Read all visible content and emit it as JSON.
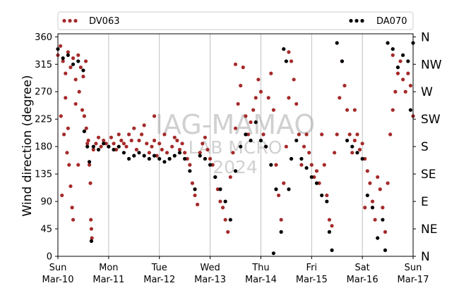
{
  "chart_data": {
    "type": "scatter",
    "xlabel": "",
    "ylabel": "Wind direction (degree)",
    "ylim": [
      0,
      365
    ],
    "xlim": [
      "2024-03-10",
      "2024-03-17"
    ],
    "yticks": [
      0,
      45,
      90,
      135,
      180,
      225,
      270,
      315,
      360
    ],
    "compass_ticks": [
      {
        "value": 0,
        "label": "N"
      },
      {
        "value": 45,
        "label": "NE"
      },
      {
        "value": 90,
        "label": "E"
      },
      {
        "value": 135,
        "label": "SE"
      },
      {
        "value": 180,
        "label": "S"
      },
      {
        "value": 225,
        "label": "SW"
      },
      {
        "value": 270,
        "label": "W"
      },
      {
        "value": 315,
        "label": "NW"
      },
      {
        "value": 360,
        "label": "N"
      }
    ],
    "xticks": [
      {
        "day": "Sun",
        "date": "Mar-10"
      },
      {
        "day": "Mon",
        "date": "Mar-11"
      },
      {
        "day": "Tue",
        "date": "Mar-12"
      },
      {
        "day": "Wed",
        "date": "Mar-13"
      },
      {
        "day": "Thu",
        "date": "Mar-14"
      },
      {
        "day": "Fri",
        "date": "Mar-15"
      },
      {
        "day": "Sat",
        "date": "Mar-16"
      },
      {
        "day": "Sun",
        "date": "Mar-17"
      }
    ],
    "grid": "vertical",
    "legend_position": "top",
    "watermark": [
      "IAG-MAMAO",
      "LAB MCRO",
      "2024"
    ],
    "series": [
      {
        "name": "DV063",
        "color": "#a52a2a",
        "points": [
          [
            0.0,
            330
          ],
          [
            0.05,
            345
          ],
          [
            0.1,
            320
          ],
          [
            0.15,
            300
          ],
          [
            0.2,
            335
          ],
          [
            0.25,
            310
          ],
          [
            0.3,
            325
          ],
          [
            0.35,
            290
          ],
          [
            0.4,
            330
          ],
          [
            0.45,
            310
          ],
          [
            0.5,
            295
          ],
          [
            0.55,
            320
          ],
          [
            0.06,
            230
          ],
          [
            0.12,
            200
          ],
          [
            0.18,
            170
          ],
          [
            0.22,
            150
          ],
          [
            0.25,
            115
          ],
          [
            0.28,
            80
          ],
          [
            0.3,
            60
          ],
          [
            0.08,
            100
          ],
          [
            0.15,
            260
          ],
          [
            0.35,
            250
          ],
          [
            0.42,
            270
          ],
          [
            0.48,
            240
          ],
          [
            0.52,
            230
          ],
          [
            0.56,
            210
          ],
          [
            0.58,
            185
          ],
          [
            0.6,
            190
          ],
          [
            0.62,
            150
          ],
          [
            0.64,
            120
          ],
          [
            0.65,
            60
          ],
          [
            0.66,
            45
          ],
          [
            0.67,
            30
          ],
          [
            0.7,
            175
          ],
          [
            0.75,
            185
          ],
          [
            0.8,
            195
          ],
          [
            0.85,
            180
          ],
          [
            0.9,
            190
          ],
          [
            0.95,
            185
          ],
          [
            1.0,
            180
          ],
          [
            1.05,
            195
          ],
          [
            1.1,
            185
          ],
          [
            1.15,
            175
          ],
          [
            1.2,
            200
          ],
          [
            1.25,
            190
          ],
          [
            1.3,
            185
          ],
          [
            1.35,
            180
          ],
          [
            1.4,
            200
          ],
          [
            1.45,
            190
          ],
          [
            1.5,
            210
          ],
          [
            1.55,
            175
          ],
          [
            1.6,
            190
          ],
          [
            1.65,
            200
          ],
          [
            1.7,
            215
          ],
          [
            1.75,
            185
          ],
          [
            1.8,
            170
          ],
          [
            1.85,
            180
          ],
          [
            1.9,
            190
          ],
          [
            1.95,
            165
          ],
          [
            2.0,
            185
          ],
          [
            2.05,
            175
          ],
          [
            2.1,
            200
          ],
          [
            2.15,
            170
          ],
          [
            2.2,
            160
          ],
          [
            2.25,
            180
          ],
          [
            2.3,
            195
          ],
          [
            2.35,
            190
          ],
          [
            2.4,
            175
          ],
          [
            2.45,
            185
          ],
          [
            2.5,
            170
          ],
          [
            2.55,
            160
          ],
          [
            2.6,
            150
          ],
          [
            2.65,
            120
          ],
          [
            2.7,
            100
          ],
          [
            2.75,
            85
          ],
          [
            2.8,
            170
          ],
          [
            2.85,
            185
          ],
          [
            2.9,
            195
          ],
          [
            2.95,
            175
          ],
          [
            3.0,
            160
          ],
          [
            3.05,
            150
          ],
          [
            3.1,
            130
          ],
          [
            3.15,
            110
          ],
          [
            3.2,
            90
          ],
          [
            3.25,
            80
          ],
          [
            3.3,
            60
          ],
          [
            3.35,
            40
          ],
          [
            3.4,
            130
          ],
          [
            3.45,
            170
          ],
          [
            3.5,
            210
          ],
          [
            3.55,
            250
          ],
          [
            3.6,
            280
          ],
          [
            3.65,
            310
          ],
          [
            3.7,
            230
          ],
          [
            3.75,
            200
          ],
          [
            3.8,
            220
          ],
          [
            3.85,
            240
          ],
          [
            3.9,
            260
          ],
          [
            3.95,
            290
          ],
          [
            4.0,
            270
          ],
          [
            4.05,
            200
          ],
          [
            4.1,
            180
          ],
          [
            4.15,
            260
          ],
          [
            4.2,
            300
          ],
          [
            4.25,
            240
          ],
          [
            4.3,
            150
          ],
          [
            4.35,
            100
          ],
          [
            4.4,
            60
          ],
          [
            4.45,
            120
          ],
          [
            4.5,
            180
          ],
          [
            4.55,
            260
          ],
          [
            4.6,
            320
          ],
          [
            4.65,
            290
          ],
          [
            4.7,
            250
          ],
          [
            4.75,
            200
          ],
          [
            4.8,
            150
          ],
          [
            4.85,
            180
          ],
          [
            4.9,
            200
          ],
          [
            4.95,
            170
          ],
          [
            5.0,
            150
          ],
          [
            5.05,
            130
          ],
          [
            5.1,
            140
          ],
          [
            5.15,
            120
          ],
          [
            5.2,
            200
          ],
          [
            5.25,
            150
          ],
          [
            5.3,
            100
          ],
          [
            5.35,
            60
          ],
          [
            5.4,
            50
          ],
          [
            5.45,
            170
          ],
          [
            5.5,
            200
          ],
          [
            5.55,
            260
          ],
          [
            5.6,
            320
          ],
          [
            5.65,
            280
          ],
          [
            5.7,
            240
          ],
          [
            5.75,
            200
          ],
          [
            5.8,
            170
          ],
          [
            5.85,
            190
          ],
          [
            5.9,
            200
          ],
          [
            5.95,
            175
          ],
          [
            6.0,
            185
          ],
          [
            6.05,
            160
          ],
          [
            6.1,
            140
          ],
          [
            6.15,
            120
          ],
          [
            6.2,
            90
          ],
          [
            6.25,
            60
          ],
          [
            6.3,
            130
          ],
          [
            6.35,
            110
          ],
          [
            6.4,
            80
          ],
          [
            6.45,
            40
          ],
          [
            6.5,
            120
          ],
          [
            6.55,
            200
          ],
          [
            6.6,
            240
          ],
          [
            6.65,
            270
          ],
          [
            6.7,
            300
          ],
          [
            6.75,
            320
          ],
          [
            6.8,
            290
          ],
          [
            6.85,
            270
          ],
          [
            6.9,
            300
          ],
          [
            6.95,
            280
          ],
          [
            7.0,
            230
          ],
          [
            0.2,
            210
          ],
          [
            0.4,
            150
          ],
          [
            1.9,
            230
          ],
          [
            3.5,
            315
          ],
          [
            4.55,
            335
          ],
          [
            5.85,
            240
          ],
          [
            6.6,
            330
          ],
          [
            6.05,
            80
          ]
        ]
      },
      {
        "name": "DA070",
        "color": "#000000",
        "points": [
          [
            0.0,
            340
          ],
          [
            0.1,
            325
          ],
          [
            0.2,
            330
          ],
          [
            0.3,
            315
          ],
          [
            0.4,
            320
          ],
          [
            0.5,
            305
          ],
          [
            0.52,
            205
          ],
          [
            0.58,
            180
          ],
          [
            0.62,
            155
          ],
          [
            0.66,
            25
          ],
          [
            0.7,
            180
          ],
          [
            0.8,
            175
          ],
          [
            0.9,
            185
          ],
          [
            1.0,
            180
          ],
          [
            1.1,
            175
          ],
          [
            1.2,
            180
          ],
          [
            1.3,
            170
          ],
          [
            1.4,
            160
          ],
          [
            1.5,
            165
          ],
          [
            1.6,
            170
          ],
          [
            1.7,
            165
          ],
          [
            1.8,
            160
          ],
          [
            1.9,
            165
          ],
          [
            2.0,
            160
          ],
          [
            2.1,
            155
          ],
          [
            2.2,
            160
          ],
          [
            2.3,
            165
          ],
          [
            2.4,
            170
          ],
          [
            2.5,
            160
          ],
          [
            2.6,
            140
          ],
          [
            2.7,
            110
          ],
          [
            2.8,
            165
          ],
          [
            2.9,
            160
          ],
          [
            3.0,
            150
          ],
          [
            3.1,
            130
          ],
          [
            3.2,
            110
          ],
          [
            3.3,
            90
          ],
          [
            3.4,
            60
          ],
          [
            3.5,
            140
          ],
          [
            3.6,
            180
          ],
          [
            3.7,
            200
          ],
          [
            3.8,
            190
          ],
          [
            3.9,
            220
          ],
          [
            4.0,
            190
          ],
          [
            4.1,
            180
          ],
          [
            4.2,
            150
          ],
          [
            4.25,
            5
          ],
          [
            4.3,
            110
          ],
          [
            4.4,
            40
          ],
          [
            4.45,
            340
          ],
          [
            4.5,
            320
          ],
          [
            4.55,
            110
          ],
          [
            4.6,
            160
          ],
          [
            4.7,
            190
          ],
          [
            4.8,
            160
          ],
          [
            4.9,
            145
          ],
          [
            5.0,
            130
          ],
          [
            5.1,
            120
          ],
          [
            5.2,
            100
          ],
          [
            5.3,
            90
          ],
          [
            5.35,
            40
          ],
          [
            5.4,
            10
          ],
          [
            5.5,
            350
          ],
          [
            5.6,
            320
          ],
          [
            5.7,
            190
          ],
          [
            5.8,
            180
          ],
          [
            5.9,
            170
          ],
          [
            6.0,
            160
          ],
          [
            6.1,
            100
          ],
          [
            6.2,
            80
          ],
          [
            6.3,
            30
          ],
          [
            6.4,
            60
          ],
          [
            6.45,
            10
          ],
          [
            6.5,
            350
          ],
          [
            6.6,
            340
          ],
          [
            6.7,
            310
          ],
          [
            6.8,
            330
          ],
          [
            6.9,
            320
          ],
          [
            6.95,
            240
          ],
          [
            7.0,
            350
          ]
        ]
      }
    ]
  }
}
